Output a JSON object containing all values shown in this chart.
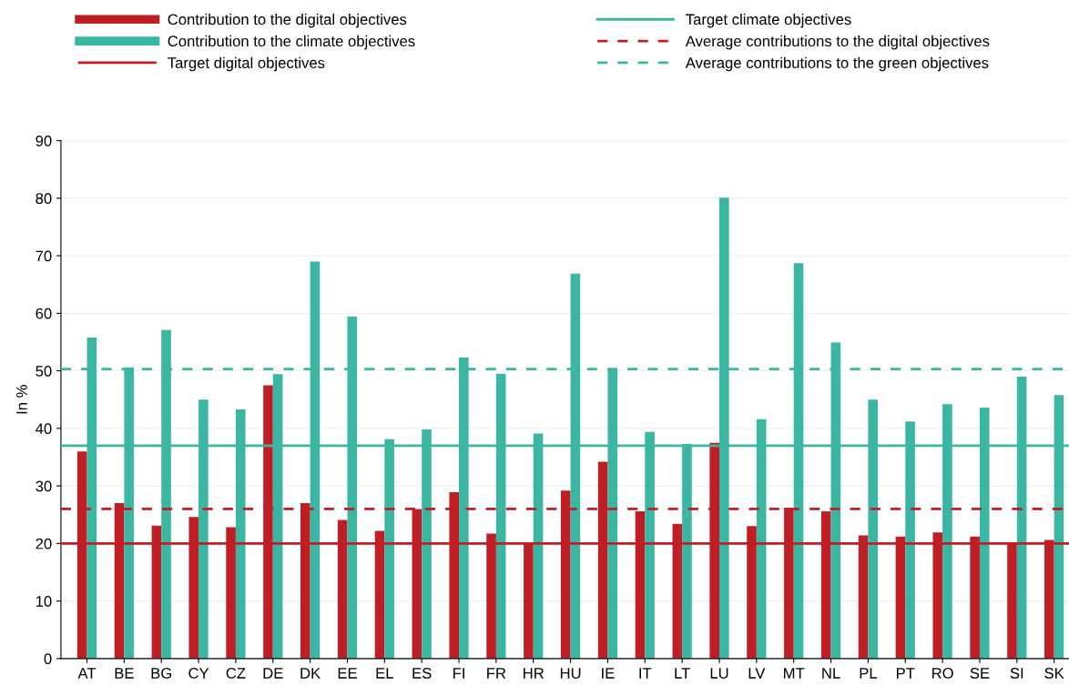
{
  "chart_data": {
    "type": "bar",
    "ylabel": "In %",
    "categories": [
      "AT",
      "BE",
      "BG",
      "CY",
      "CZ",
      "DE",
      "DK",
      "EE",
      "EL",
      "ES",
      "FI",
      "FR",
      "HR",
      "HU",
      "IE",
      "IT",
      "LT",
      "LU",
      "LV",
      "MT",
      "NL",
      "PL",
      "PT",
      "RO",
      "SE",
      "SI",
      "SK"
    ],
    "series": [
      {
        "name": "Contribution to the digital objectives",
        "color": "#be1e24",
        "values": [
          36,
          27,
          23.1,
          24.6,
          22.8,
          47.5,
          27,
          24.1,
          22.2,
          26,
          28.9,
          21.7,
          20.2,
          29.2,
          34.2,
          25.6,
          23.4,
          37.5,
          23,
          26.2,
          25.6,
          21.4,
          21.2,
          21.9,
          21.2,
          20,
          20.6
        ]
      },
      {
        "name": "Contribution to the climate objectives",
        "color": "#3bb6a3",
        "values": [
          55.8,
          50.6,
          57.1,
          45,
          43.3,
          49.4,
          69,
          59.4,
          38.1,
          39.8,
          52.3,
          49.5,
          39.1,
          66.9,
          50.4,
          39.4,
          37.3,
          80.1,
          41.6,
          68.7,
          54.9,
          45,
          41.2,
          44.2,
          43.6,
          49,
          45.8
        ]
      }
    ],
    "ref_lines": [
      {
        "axis": "y",
        "value": 20,
        "label": "Target digital objectives",
        "color": "#be1e24",
        "line_style": "solid"
      },
      {
        "axis": "y",
        "value": 37,
        "label": "Target climate objectives",
        "color": "#3bb6a3",
        "line_style": "solid"
      },
      {
        "axis": "y",
        "value": 26,
        "label": "Average contributions to the digital objectives",
        "color": "#be1e24",
        "line_style": "dashed"
      },
      {
        "axis": "y",
        "value": 50.3,
        "label": "Average contributions to the green objectives",
        "color": "#3bb6a3",
        "line_style": "dashed"
      }
    ],
    "ylim": [
      0,
      90
    ],
    "yticks": [
      0,
      10,
      20,
      30,
      40,
      50,
      60,
      70,
      80,
      90
    ],
    "grid": "y",
    "legend": "top"
  }
}
